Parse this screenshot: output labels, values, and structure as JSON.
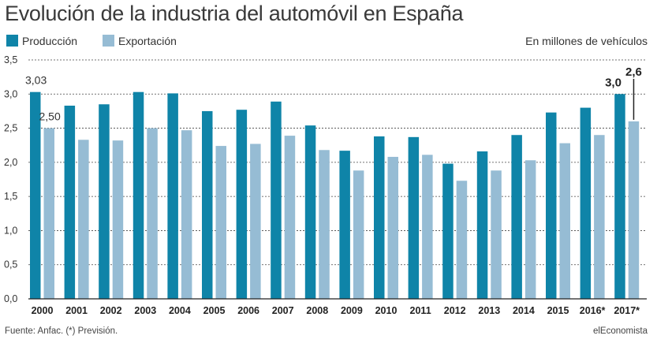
{
  "header": {
    "title": "Evolución de la industria del automóvil en España",
    "unit_label": "En millones de vehículos"
  },
  "footer": {
    "source": "Fuente: Anfac. (*) Previsión.",
    "brand": "elEconomista"
  },
  "colors": {
    "produccion": "#0f84a8",
    "exportacion": "#96bcd4",
    "grid": "#444444",
    "text": "#333333"
  },
  "chart_data": {
    "type": "bar",
    "categories": [
      "2000",
      "2001",
      "2002",
      "2003",
      "2004",
      "2005",
      "2006",
      "2007",
      "2008",
      "2009",
      "2010",
      "2011",
      "2012",
      "2013",
      "2014",
      "2015",
      "2016*",
      "2017*"
    ],
    "series": [
      {
        "name": "Producción",
        "values": [
          3.03,
          2.83,
          2.85,
          3.03,
          3.01,
          2.75,
          2.77,
          2.89,
          2.54,
          2.17,
          2.38,
          2.37,
          1.98,
          2.16,
          2.4,
          2.73,
          2.8,
          3.0
        ]
      },
      {
        "name": "Exportación",
        "values": [
          2.5,
          2.33,
          2.32,
          2.5,
          2.47,
          2.24,
          2.27,
          2.39,
          2.18,
          1.88,
          2.08,
          2.11,
          1.73,
          1.88,
          2.03,
          2.28,
          2.4,
          2.6
        ]
      }
    ],
    "y_ticks": [
      "0,0",
      "0,5",
      "1,0",
      "1,5",
      "2,0",
      "2,5",
      "3,0",
      "3,5"
    ],
    "ylim": [
      0,
      3.5
    ],
    "grid": true,
    "legend": "top-left",
    "annotations": [
      {
        "series": 0,
        "index": 0,
        "text": "3,03",
        "bold": false
      },
      {
        "series": 1,
        "index": 0,
        "text": "2,50",
        "bold": false
      },
      {
        "series": 0,
        "index": 17,
        "text": "3,0",
        "bold": true
      },
      {
        "series": 1,
        "index": 17,
        "text": "2,6",
        "bold": true
      }
    ]
  }
}
